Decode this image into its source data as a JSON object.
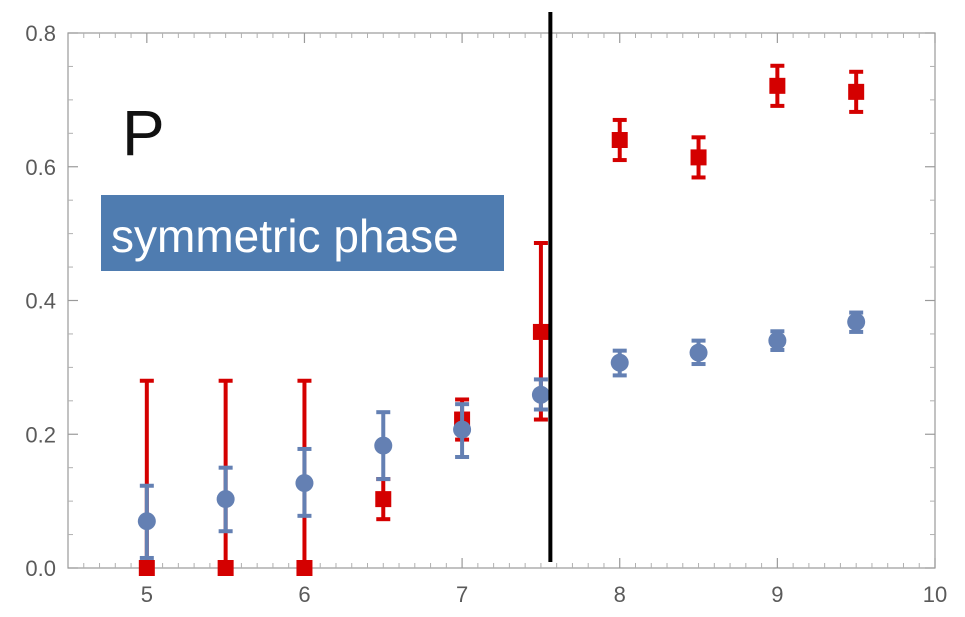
{
  "chart_data": {
    "type": "scatter",
    "title": "",
    "xlabel": "",
    "ylabel": "",
    "xlim": [
      4.5,
      10
    ],
    "ylim": [
      0,
      0.8
    ],
    "x_ticks": [
      5,
      6,
      7,
      8,
      9,
      10
    ],
    "y_ticks": [
      0.0,
      0.2,
      0.4,
      0.6,
      0.8
    ],
    "x_tick_labels": [
      "5",
      "6",
      "7",
      "8",
      "9",
      "10"
    ],
    "y_tick_labels": [
      "0.0",
      "0.2",
      "0.4",
      "0.6",
      "0.8"
    ],
    "vertical_line_x": 7.56,
    "panel_label": "P",
    "annotation": "symmetric phase",
    "grid": false,
    "series": [
      {
        "marker": "square",
        "color": "#d40000",
        "points": [
          {
            "x": 5.0,
            "y": 0.0,
            "lo": 0.0,
            "hi": 0.28
          },
          {
            "x": 5.5,
            "y": 0.0,
            "lo": 0.0,
            "hi": 0.28
          },
          {
            "x": 6.0,
            "y": 0.0,
            "lo": 0.0,
            "hi": 0.28
          },
          {
            "x": 6.5,
            "y": 0.103,
            "lo": 0.073,
            "hi": 0.133
          },
          {
            "x": 7.0,
            "y": 0.222,
            "lo": 0.192,
            "hi": 0.252
          },
          {
            "x": 7.5,
            "y": 0.353,
            "lo": 0.222,
            "hi": 0.486
          },
          {
            "x": 8.0,
            "y": 0.64,
            "lo": 0.61,
            "hi": 0.67
          },
          {
            "x": 8.5,
            "y": 0.614,
            "lo": 0.584,
            "hi": 0.644
          },
          {
            "x": 9.0,
            "y": 0.721,
            "lo": 0.691,
            "hi": 0.751
          },
          {
            "x": 9.5,
            "y": 0.712,
            "lo": 0.682,
            "hi": 0.742
          }
        ]
      },
      {
        "marker": "circle",
        "color": "#6480b3",
        "points": [
          {
            "x": 5.0,
            "y": 0.07,
            "lo": 0.015,
            "hi": 0.123
          },
          {
            "x": 5.5,
            "y": 0.103,
            "lo": 0.055,
            "hi": 0.15
          },
          {
            "x": 6.0,
            "y": 0.127,
            "lo": 0.078,
            "hi": 0.178
          },
          {
            "x": 6.5,
            "y": 0.183,
            "lo": 0.133,
            "hi": 0.233
          },
          {
            "x": 7.0,
            "y": 0.207,
            "lo": 0.166,
            "hi": 0.245
          },
          {
            "x": 7.5,
            "y": 0.259,
            "lo": 0.237,
            "hi": 0.282
          },
          {
            "x": 8.0,
            "y": 0.307,
            "lo": 0.288,
            "hi": 0.325
          },
          {
            "x": 8.5,
            "y": 0.322,
            "lo": 0.305,
            "hi": 0.34
          },
          {
            "x": 9.0,
            "y": 0.34,
            "lo": 0.326,
            "hi": 0.354
          },
          {
            "x": 9.5,
            "y": 0.368,
            "lo": 0.353,
            "hi": 0.382
          }
        ]
      }
    ]
  }
}
